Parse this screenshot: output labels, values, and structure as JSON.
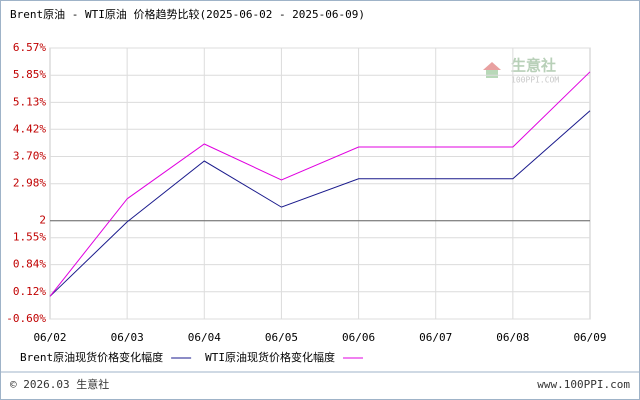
{
  "chart_data": {
    "type": "line",
    "title": "Brent原油 - WTI原油 价格趋势比较(2025-06-02 - 2025-06-09)",
    "categories": [
      "06/02",
      "06/03",
      "06/04",
      "06/05",
      "06/06",
      "06/07",
      "06/08",
      "06/09"
    ],
    "series": [
      {
        "name": "Brent原油现货价格变化幅度",
        "color": "#1a1a8c",
        "values": [
          0,
          1.97,
          3.58,
          2.36,
          3.11,
          3.11,
          3.11,
          4.91
        ]
      },
      {
        "name": "WTI原油现货价格变化幅度",
        "color": "#e000e0",
        "values": [
          0,
          2.58,
          4.03,
          3.08,
          3.95,
          3.95,
          3.95,
          5.94
        ]
      }
    ],
    "ylim": [
      -0.6,
      6.57
    ],
    "yticks": [
      {
        "value": -0.6,
        "label": "-0.60%"
      },
      {
        "value": 0.12,
        "label": "0.12%"
      },
      {
        "value": 0.84,
        "label": "0.84%"
      },
      {
        "value": 1.55,
        "label": "1.55%"
      },
      2,
      {
        "value": 2.98,
        "label": "2.98%"
      },
      {
        "value": 3.7,
        "label": "3.70%"
      },
      {
        "value": 4.42,
        "label": "4.42%"
      },
      {
        "value": 5.13,
        "label": "5.13%"
      },
      {
        "value": 5.85,
        "label": "5.85%"
      },
      {
        "value": 6.57,
        "label": "6.57%"
      }
    ],
    "reference_line": 2,
    "grid": true,
    "watermark": {
      "name": "生意社",
      "site": "100PPI.COM"
    },
    "footer": {
      "copyright": "© 2026.03 生意社",
      "site": "www.100PPI.com"
    }
  }
}
